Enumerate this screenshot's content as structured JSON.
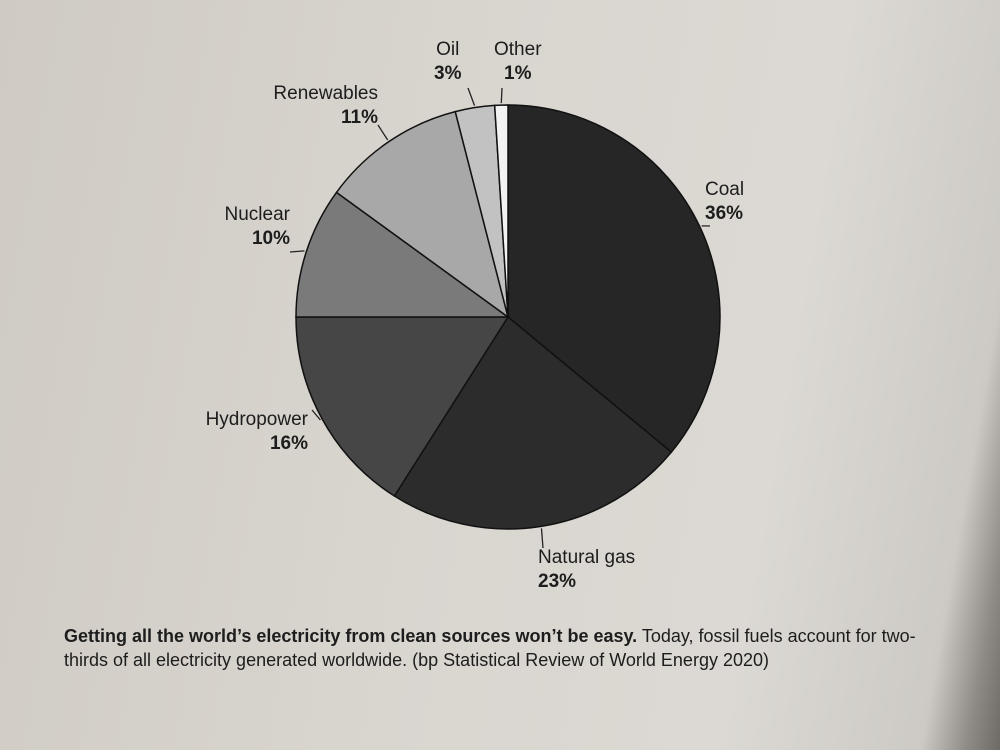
{
  "chart_data": {
    "type": "pie",
    "title": "",
    "start": "top",
    "direction": "clockwise",
    "slices": [
      {
        "label": "Coal",
        "value": 36,
        "value_label": "36%",
        "color": "#262626"
      },
      {
        "label": "Natural gas",
        "value": 23,
        "value_label": "23%",
        "color": "#2c2c2c"
      },
      {
        "label": "Hydropower",
        "value": 16,
        "value_label": "16%",
        "color": "#464646"
      },
      {
        "label": "Nuclear",
        "value": 10,
        "value_label": "10%",
        "color": "#7a7a7a"
      },
      {
        "label": "Renewables",
        "value": 11,
        "value_label": "11%",
        "color": "#a8a8a8"
      },
      {
        "label": "Oil",
        "value": 3,
        "value_label": "3%",
        "color": "#c2c2c2"
      },
      {
        "label": "Other",
        "value": 1,
        "value_label": "1%",
        "color": "#f2f2f2"
      }
    ]
  },
  "caption": {
    "bold": "Getting all the world’s electricity from clean sources won’t be easy.",
    "text": " Today, fossil fuels account for two-thirds of all electricity generated worldwide. (bp Statistical Review of World Energy 2020)"
  }
}
